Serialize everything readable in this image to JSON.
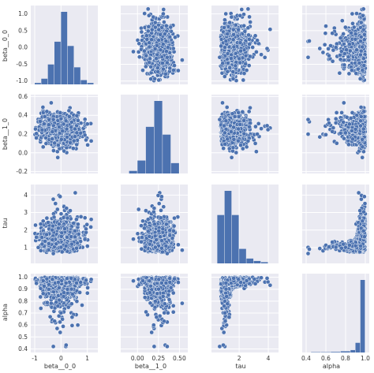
{
  "chart_data": {
    "type": "scatter",
    "subtype": "pairplot",
    "title": "",
    "grid": true,
    "background_color": "#EAEAF2",
    "marker_color": "#4C72B0",
    "marker_edge_color": "#FFFFFF",
    "variables": [
      {
        "name": "beta__0_0",
        "xlim": [
          -1.15,
          1.4
        ],
        "ylim": [
          -1.1,
          1.25
        ],
        "xticks": [
          {
            "value": -1,
            "label": "-1"
          },
          {
            "value": 0,
            "label": "0"
          },
          {
            "value": 1,
            "label": "1"
          }
        ],
        "yticks": [
          {
            "value": -1.0,
            "label": "-1.0"
          },
          {
            "value": -0.5,
            "label": "-0.5"
          },
          {
            "value": 0.0,
            "label": "0.0"
          },
          {
            "value": 0.5,
            "label": "0.5"
          },
          {
            "value": 1.0,
            "label": "1.0"
          }
        ]
      },
      {
        "name": "beta__1_0",
        "xlim": [
          -0.2,
          0.6
        ],
        "ylim": [
          -0.22,
          0.62
        ],
        "xticks": [
          {
            "value": 0.0,
            "label": "0.00"
          },
          {
            "value": 0.25,
            "label": "0.25"
          },
          {
            "value": 0.5,
            "label": "0.50"
          }
        ],
        "yticks": [
          {
            "value": -0.2,
            "label": "-0.2"
          },
          {
            "value": 0.0,
            "label": "0.0"
          },
          {
            "value": 0.2,
            "label": "0.2"
          },
          {
            "value": 0.4,
            "label": "0.4"
          },
          {
            "value": 0.6,
            "label": "0.6"
          }
        ]
      },
      {
        "name": "tau",
        "xlim": [
          0.1,
          4.7
        ],
        "ylim": [
          0.1,
          4.6
        ],
        "xticks": [
          {
            "value": 2,
            "label": "2"
          },
          {
            "value": 4,
            "label": "4"
          }
        ],
        "yticks": [
          {
            "value": 1,
            "label": "1"
          },
          {
            "value": 2,
            "label": "2"
          },
          {
            "value": 3,
            "label": "3"
          },
          {
            "value": 4,
            "label": "4"
          }
        ]
      },
      {
        "name": "alpha",
        "xlim": [
          0.36,
          1.04
        ],
        "ylim": [
          0.37,
          1.03
        ],
        "xticks": [
          {
            "value": 0.4,
            "label": "0.4"
          },
          {
            "value": 0.6,
            "label": "0.6"
          },
          {
            "value": 0.8,
            "label": "0.8"
          },
          {
            "value": 1.0,
            "label": "1.0"
          }
        ],
        "yticks": [
          {
            "value": 0.4,
            "label": "0.4"
          },
          {
            "value": 0.5,
            "label": "0.5"
          },
          {
            "value": 0.6,
            "label": "0.6"
          },
          {
            "value": 0.7,
            "label": "0.7"
          },
          {
            "value": 0.8,
            "label": "0.8"
          },
          {
            "value": 0.9,
            "label": "0.9"
          },
          {
            "value": 1.0,
            "label": "1.0"
          }
        ]
      }
    ],
    "histograms": [
      {
        "variable": "beta__0_0",
        "bin_edges": [
          -1.0,
          -0.75,
          -0.5,
          -0.25,
          0.0,
          0.25,
          0.5,
          0.75,
          1.0,
          1.25
        ],
        "counts": [
          1,
          4,
          14,
          30,
          51,
          27,
          12,
          3,
          1
        ]
      },
      {
        "variable": "beta__1_0",
        "bin_edges": [
          -0.1,
          0.0,
          0.1,
          0.2,
          0.3,
          0.4,
          0.5
        ],
        "counts": [
          1,
          5,
          18,
          28,
          15,
          4
        ]
      },
      {
        "variable": "tau",
        "bin_edges": [
          0.5,
          1.0,
          1.5,
          2.0,
          2.5,
          3.0,
          3.5,
          4.0
        ],
        "counts": [
          20,
          30,
          20,
          6,
          2,
          1,
          0.5
        ]
      },
      {
        "variable": "alpha",
        "bin_edges": [
          0.45,
          0.55,
          0.65,
          0.75,
          0.85,
          0.9,
          0.95,
          1.0
        ],
        "counts": [
          0.3,
          0.3,
          0.5,
          1,
          2,
          8,
          60
        ]
      }
    ]
  }
}
